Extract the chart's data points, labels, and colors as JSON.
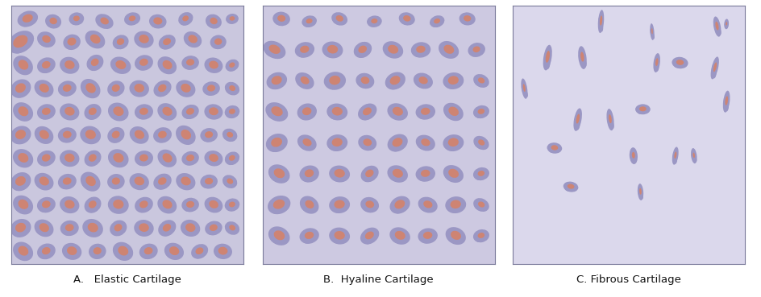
{
  "background_color": "#ffffff",
  "panel_bg_elastic": "#cac7de",
  "panel_bg_hyaline": "#cdc9e1",
  "panel_bg_fibrous": "#dbd8ec",
  "cell_outer_color": "#9b97c4",
  "cell_inner_color": "#d4826a",
  "border_color": "#7a7a9a",
  "labels": [
    "A.   Elastic Cartilage",
    "B.  Hyaline Cartilage",
    "C. Fibrous Cartilage"
  ],
  "label_fontsize": 9.5,
  "elastic_cells": [
    [
      0.07,
      0.95,
      0.09,
      0.06,
      15,
      0.6
    ],
    [
      0.18,
      0.94,
      0.07,
      0.055,
      -10,
      0.55
    ],
    [
      0.28,
      0.95,
      0.065,
      0.05,
      5,
      0.5
    ],
    [
      0.4,
      0.94,
      0.08,
      0.055,
      -20,
      0.55
    ],
    [
      0.52,
      0.95,
      0.07,
      0.05,
      10,
      0.5
    ],
    [
      0.63,
      0.94,
      0.075,
      0.055,
      -5,
      0.6
    ],
    [
      0.75,
      0.95,
      0.065,
      0.05,
      20,
      0.5
    ],
    [
      0.87,
      0.94,
      0.07,
      0.055,
      -15,
      0.55
    ],
    [
      0.95,
      0.95,
      0.055,
      0.04,
      5,
      0.5
    ],
    [
      0.04,
      0.86,
      0.12,
      0.08,
      25,
      0.65
    ],
    [
      0.15,
      0.87,
      0.08,
      0.06,
      -15,
      0.55
    ],
    [
      0.26,
      0.86,
      0.075,
      0.06,
      10,
      0.6
    ],
    [
      0.36,
      0.87,
      0.09,
      0.065,
      -25,
      0.6
    ],
    [
      0.47,
      0.86,
      0.07,
      0.055,
      15,
      0.55
    ],
    [
      0.57,
      0.87,
      0.085,
      0.065,
      -10,
      0.6
    ],
    [
      0.67,
      0.86,
      0.075,
      0.055,
      20,
      0.55
    ],
    [
      0.78,
      0.87,
      0.08,
      0.06,
      -20,
      0.6
    ],
    [
      0.89,
      0.86,
      0.07,
      0.055,
      5,
      0.55
    ],
    [
      0.05,
      0.77,
      0.09,
      0.07,
      -30,
      0.6
    ],
    [
      0.15,
      0.77,
      0.08,
      0.06,
      15,
      0.55
    ],
    [
      0.25,
      0.77,
      0.085,
      0.065,
      -10,
      0.6
    ],
    [
      0.36,
      0.78,
      0.075,
      0.06,
      25,
      0.55
    ],
    [
      0.47,
      0.77,
      0.09,
      0.065,
      -15,
      0.6
    ],
    [
      0.57,
      0.78,
      0.08,
      0.06,
      10,
      0.55
    ],
    [
      0.67,
      0.77,
      0.085,
      0.065,
      -25,
      0.6
    ],
    [
      0.77,
      0.78,
      0.075,
      0.055,
      5,
      0.55
    ],
    [
      0.87,
      0.77,
      0.08,
      0.06,
      -10,
      0.6
    ],
    [
      0.95,
      0.77,
      0.06,
      0.045,
      20,
      0.5
    ],
    [
      0.04,
      0.68,
      0.09,
      0.07,
      20,
      0.6
    ],
    [
      0.14,
      0.68,
      0.085,
      0.065,
      -20,
      0.6
    ],
    [
      0.24,
      0.68,
      0.08,
      0.06,
      10,
      0.55
    ],
    [
      0.34,
      0.68,
      0.09,
      0.07,
      -30,
      0.6
    ],
    [
      0.45,
      0.68,
      0.075,
      0.06,
      15,
      0.55
    ],
    [
      0.55,
      0.68,
      0.085,
      0.065,
      -5,
      0.6
    ],
    [
      0.65,
      0.68,
      0.08,
      0.06,
      25,
      0.55
    ],
    [
      0.75,
      0.68,
      0.085,
      0.065,
      -15,
      0.6
    ],
    [
      0.86,
      0.68,
      0.075,
      0.055,
      5,
      0.55
    ],
    [
      0.95,
      0.68,
      0.065,
      0.05,
      -20,
      0.5
    ],
    [
      0.05,
      0.59,
      0.09,
      0.07,
      -25,
      0.6
    ],
    [
      0.15,
      0.59,
      0.08,
      0.06,
      10,
      0.55
    ],
    [
      0.25,
      0.59,
      0.085,
      0.065,
      -10,
      0.6
    ],
    [
      0.35,
      0.59,
      0.075,
      0.06,
      20,
      0.55
    ],
    [
      0.46,
      0.59,
      0.09,
      0.07,
      -15,
      0.6
    ],
    [
      0.57,
      0.59,
      0.08,
      0.06,
      5,
      0.55
    ],
    [
      0.67,
      0.59,
      0.085,
      0.065,
      -20,
      0.6
    ],
    [
      0.77,
      0.59,
      0.075,
      0.055,
      15,
      0.55
    ],
    [
      0.87,
      0.59,
      0.08,
      0.06,
      -5,
      0.6
    ],
    [
      0.95,
      0.59,
      0.065,
      0.05,
      10,
      0.5
    ],
    [
      0.04,
      0.5,
      0.09,
      0.07,
      15,
      0.6
    ],
    [
      0.14,
      0.5,
      0.085,
      0.065,
      -25,
      0.6
    ],
    [
      0.24,
      0.5,
      0.08,
      0.06,
      5,
      0.55
    ],
    [
      0.34,
      0.5,
      0.09,
      0.07,
      -10,
      0.6
    ],
    [
      0.45,
      0.5,
      0.075,
      0.06,
      20,
      0.55
    ],
    [
      0.55,
      0.5,
      0.085,
      0.065,
      -20,
      0.6
    ],
    [
      0.65,
      0.5,
      0.08,
      0.06,
      10,
      0.55
    ],
    [
      0.75,
      0.5,
      0.09,
      0.07,
      -30,
      0.6
    ],
    [
      0.85,
      0.5,
      0.075,
      0.055,
      5,
      0.55
    ],
    [
      0.94,
      0.5,
      0.065,
      0.05,
      -15,
      0.5
    ],
    [
      0.05,
      0.41,
      0.09,
      0.07,
      -20,
      0.6
    ],
    [
      0.15,
      0.41,
      0.08,
      0.06,
      15,
      0.55
    ],
    [
      0.25,
      0.41,
      0.085,
      0.065,
      -5,
      0.6
    ],
    [
      0.35,
      0.41,
      0.075,
      0.06,
      25,
      0.55
    ],
    [
      0.46,
      0.41,
      0.09,
      0.07,
      -15,
      0.6
    ],
    [
      0.57,
      0.41,
      0.08,
      0.06,
      5,
      0.55
    ],
    [
      0.67,
      0.41,
      0.085,
      0.065,
      -25,
      0.6
    ],
    [
      0.77,
      0.41,
      0.075,
      0.055,
      10,
      0.55
    ],
    [
      0.87,
      0.41,
      0.08,
      0.06,
      -10,
      0.6
    ],
    [
      0.95,
      0.41,
      0.065,
      0.05,
      20,
      0.5
    ],
    [
      0.04,
      0.32,
      0.09,
      0.07,
      20,
      0.6
    ],
    [
      0.14,
      0.32,
      0.085,
      0.065,
      -20,
      0.6
    ],
    [
      0.24,
      0.32,
      0.08,
      0.06,
      10,
      0.55
    ],
    [
      0.34,
      0.32,
      0.09,
      0.07,
      -30,
      0.6
    ],
    [
      0.45,
      0.32,
      0.075,
      0.06,
      5,
      0.55
    ],
    [
      0.55,
      0.32,
      0.085,
      0.065,
      -10,
      0.6
    ],
    [
      0.65,
      0.32,
      0.08,
      0.06,
      20,
      0.55
    ],
    [
      0.75,
      0.32,
      0.085,
      0.065,
      -15,
      0.6
    ],
    [
      0.85,
      0.32,
      0.075,
      0.055,
      5,
      0.55
    ],
    [
      0.94,
      0.32,
      0.065,
      0.05,
      -20,
      0.5
    ],
    [
      0.05,
      0.23,
      0.09,
      0.07,
      -25,
      0.6
    ],
    [
      0.15,
      0.23,
      0.08,
      0.06,
      10,
      0.55
    ],
    [
      0.25,
      0.23,
      0.085,
      0.065,
      -10,
      0.6
    ],
    [
      0.35,
      0.23,
      0.075,
      0.06,
      25,
      0.55
    ],
    [
      0.46,
      0.23,
      0.09,
      0.07,
      -5,
      0.6
    ],
    [
      0.57,
      0.23,
      0.08,
      0.06,
      15,
      0.55
    ],
    [
      0.67,
      0.23,
      0.085,
      0.065,
      -20,
      0.6
    ],
    [
      0.77,
      0.23,
      0.075,
      0.055,
      5,
      0.55
    ],
    [
      0.87,
      0.23,
      0.08,
      0.06,
      -15,
      0.6
    ],
    [
      0.95,
      0.23,
      0.065,
      0.05,
      10,
      0.5
    ],
    [
      0.04,
      0.14,
      0.09,
      0.07,
      15,
      0.6
    ],
    [
      0.14,
      0.14,
      0.085,
      0.065,
      -20,
      0.6
    ],
    [
      0.25,
      0.14,
      0.08,
      0.06,
      5,
      0.55
    ],
    [
      0.35,
      0.14,
      0.09,
      0.07,
      -15,
      0.6
    ],
    [
      0.46,
      0.14,
      0.075,
      0.06,
      20,
      0.55
    ],
    [
      0.57,
      0.14,
      0.085,
      0.065,
      -5,
      0.6
    ],
    [
      0.67,
      0.14,
      0.08,
      0.06,
      25,
      0.55
    ],
    [
      0.77,
      0.14,
      0.085,
      0.065,
      -10,
      0.6
    ],
    [
      0.87,
      0.14,
      0.075,
      0.055,
      10,
      0.55
    ],
    [
      0.95,
      0.14,
      0.065,
      0.05,
      -20,
      0.5
    ],
    [
      0.05,
      0.05,
      0.09,
      0.07,
      -25,
      0.6
    ],
    [
      0.15,
      0.05,
      0.08,
      0.06,
      15,
      0.55
    ],
    [
      0.26,
      0.05,
      0.085,
      0.065,
      -10,
      0.6
    ],
    [
      0.37,
      0.05,
      0.075,
      0.06,
      5,
      0.55
    ],
    [
      0.48,
      0.05,
      0.09,
      0.07,
      -20,
      0.6
    ],
    [
      0.59,
      0.05,
      0.08,
      0.06,
      10,
      0.55
    ],
    [
      0.7,
      0.05,
      0.085,
      0.065,
      -15,
      0.6
    ],
    [
      0.81,
      0.05,
      0.075,
      0.055,
      20,
      0.55
    ],
    [
      0.91,
      0.05,
      0.08,
      0.06,
      -5,
      0.6
    ]
  ],
  "hyaline_cells": [
    [
      0.08,
      0.95,
      0.075,
      0.055,
      -5,
      0.55
    ],
    [
      0.2,
      0.94,
      0.065,
      0.045,
      10,
      0.5
    ],
    [
      0.33,
      0.95,
      0.07,
      0.05,
      -15,
      0.55
    ],
    [
      0.48,
      0.94,
      0.065,
      0.045,
      5,
      0.5
    ],
    [
      0.62,
      0.95,
      0.07,
      0.05,
      -10,
      0.55
    ],
    [
      0.75,
      0.94,
      0.065,
      0.045,
      15,
      0.5
    ],
    [
      0.88,
      0.95,
      0.07,
      0.05,
      -5,
      0.55
    ],
    [
      0.05,
      0.83,
      0.1,
      0.065,
      -20,
      0.6
    ],
    [
      0.18,
      0.83,
      0.085,
      0.06,
      10,
      0.55
    ],
    [
      0.3,
      0.83,
      0.09,
      0.065,
      -5,
      0.6
    ],
    [
      0.43,
      0.83,
      0.08,
      0.06,
      20,
      0.55
    ],
    [
      0.56,
      0.83,
      0.09,
      0.065,
      -15,
      0.6
    ],
    [
      0.68,
      0.83,
      0.085,
      0.06,
      5,
      0.55
    ],
    [
      0.8,
      0.83,
      0.09,
      0.065,
      -20,
      0.6
    ],
    [
      0.92,
      0.83,
      0.075,
      0.055,
      10,
      0.5
    ],
    [
      0.06,
      0.71,
      0.09,
      0.065,
      15,
      0.6
    ],
    [
      0.18,
      0.71,
      0.085,
      0.06,
      -25,
      0.55
    ],
    [
      0.31,
      0.71,
      0.095,
      0.07,
      5,
      0.6
    ],
    [
      0.44,
      0.71,
      0.08,
      0.06,
      -10,
      0.55
    ],
    [
      0.57,
      0.71,
      0.09,
      0.065,
      20,
      0.6
    ],
    [
      0.69,
      0.71,
      0.085,
      0.06,
      -15,
      0.55
    ],
    [
      0.82,
      0.71,
      0.09,
      0.065,
      5,
      0.6
    ],
    [
      0.94,
      0.71,
      0.07,
      0.05,
      -20,
      0.5
    ],
    [
      0.06,
      0.59,
      0.1,
      0.07,
      -20,
      0.6
    ],
    [
      0.19,
      0.59,
      0.085,
      0.065,
      10,
      0.55
    ],
    [
      0.32,
      0.59,
      0.09,
      0.065,
      -5,
      0.6
    ],
    [
      0.45,
      0.59,
      0.085,
      0.06,
      25,
      0.55
    ],
    [
      0.58,
      0.59,
      0.09,
      0.065,
      -15,
      0.6
    ],
    [
      0.7,
      0.59,
      0.085,
      0.06,
      5,
      0.55
    ],
    [
      0.82,
      0.59,
      0.09,
      0.065,
      -25,
      0.6
    ],
    [
      0.94,
      0.59,
      0.07,
      0.05,
      10,
      0.5
    ],
    [
      0.06,
      0.47,
      0.095,
      0.07,
      15,
      0.6
    ],
    [
      0.19,
      0.47,
      0.085,
      0.06,
      -20,
      0.55
    ],
    [
      0.32,
      0.47,
      0.09,
      0.065,
      5,
      0.6
    ],
    [
      0.45,
      0.47,
      0.08,
      0.06,
      -10,
      0.55
    ],
    [
      0.58,
      0.47,
      0.09,
      0.065,
      20,
      0.6
    ],
    [
      0.7,
      0.47,
      0.085,
      0.06,
      -15,
      0.55
    ],
    [
      0.82,
      0.47,
      0.09,
      0.065,
      5,
      0.6
    ],
    [
      0.94,
      0.47,
      0.07,
      0.05,
      -25,
      0.5
    ],
    [
      0.07,
      0.35,
      0.095,
      0.07,
      -20,
      0.6
    ],
    [
      0.2,
      0.35,
      0.085,
      0.065,
      10,
      0.55
    ],
    [
      0.33,
      0.35,
      0.09,
      0.065,
      -5,
      0.6
    ],
    [
      0.46,
      0.35,
      0.08,
      0.06,
      25,
      0.55
    ],
    [
      0.58,
      0.35,
      0.09,
      0.065,
      -15,
      0.6
    ],
    [
      0.7,
      0.35,
      0.085,
      0.06,
      5,
      0.55
    ],
    [
      0.82,
      0.35,
      0.09,
      0.065,
      -20,
      0.6
    ],
    [
      0.94,
      0.35,
      0.07,
      0.05,
      10,
      0.5
    ],
    [
      0.07,
      0.23,
      0.1,
      0.07,
      15,
      0.6
    ],
    [
      0.2,
      0.23,
      0.085,
      0.065,
      -25,
      0.55
    ],
    [
      0.33,
      0.23,
      0.09,
      0.065,
      5,
      0.6
    ],
    [
      0.46,
      0.23,
      0.08,
      0.06,
      -10,
      0.55
    ],
    [
      0.59,
      0.23,
      0.09,
      0.065,
      20,
      0.6
    ],
    [
      0.71,
      0.23,
      0.085,
      0.06,
      -15,
      0.55
    ],
    [
      0.83,
      0.23,
      0.09,
      0.065,
      5,
      0.6
    ],
    [
      0.94,
      0.23,
      0.07,
      0.05,
      -20,
      0.5
    ],
    [
      0.07,
      0.11,
      0.095,
      0.07,
      -20,
      0.6
    ],
    [
      0.2,
      0.11,
      0.085,
      0.06,
      10,
      0.55
    ],
    [
      0.33,
      0.11,
      0.09,
      0.065,
      -5,
      0.6
    ],
    [
      0.46,
      0.11,
      0.085,
      0.06,
      25,
      0.55
    ],
    [
      0.59,
      0.11,
      0.09,
      0.065,
      -15,
      0.6
    ],
    [
      0.71,
      0.11,
      0.085,
      0.06,
      5,
      0.55
    ],
    [
      0.83,
      0.11,
      0.09,
      0.065,
      -20,
      0.6
    ],
    [
      0.94,
      0.11,
      0.07,
      0.05,
      10,
      0.5
    ]
  ],
  "fibrous_cells": [
    [
      0.38,
      0.94,
      0.025,
      0.09,
      -5,
      0.5
    ],
    [
      0.6,
      0.9,
      0.018,
      0.065,
      5,
      0.4
    ],
    [
      0.15,
      0.8,
      0.035,
      0.1,
      -10,
      0.55
    ],
    [
      0.3,
      0.8,
      0.035,
      0.09,
      8,
      0.5
    ],
    [
      0.72,
      0.78,
      0.07,
      0.045,
      -5,
      0.55
    ],
    [
      0.87,
      0.76,
      0.028,
      0.09,
      -15,
      0.5
    ],
    [
      0.05,
      0.68,
      0.025,
      0.08,
      10,
      0.45
    ],
    [
      0.92,
      0.63,
      0.028,
      0.085,
      -8,
      0.5
    ],
    [
      0.56,
      0.6,
      0.065,
      0.04,
      0,
      0.55
    ],
    [
      0.28,
      0.56,
      0.032,
      0.09,
      -12,
      0.5
    ],
    [
      0.42,
      0.56,
      0.03,
      0.085,
      8,
      0.48
    ],
    [
      0.18,
      0.45,
      0.065,
      0.042,
      -5,
      0.55
    ],
    [
      0.52,
      0.42,
      0.035,
      0.065,
      5,
      0.45
    ],
    [
      0.7,
      0.42,
      0.025,
      0.07,
      -10,
      0.45
    ],
    [
      0.78,
      0.42,
      0.025,
      0.06,
      8,
      0.4
    ],
    [
      0.25,
      0.3,
      0.065,
      0.04,
      -8,
      0.55
    ],
    [
      0.55,
      0.28,
      0.025,
      0.065,
      5,
      0.45
    ],
    [
      0.62,
      0.78,
      0.028,
      0.075,
      -8,
      0.48
    ],
    [
      0.88,
      0.92,
      0.03,
      0.08,
      12,
      0.5
    ],
    [
      0.92,
      0.93,
      0.02,
      0.04,
      -5,
      0.4
    ]
  ]
}
